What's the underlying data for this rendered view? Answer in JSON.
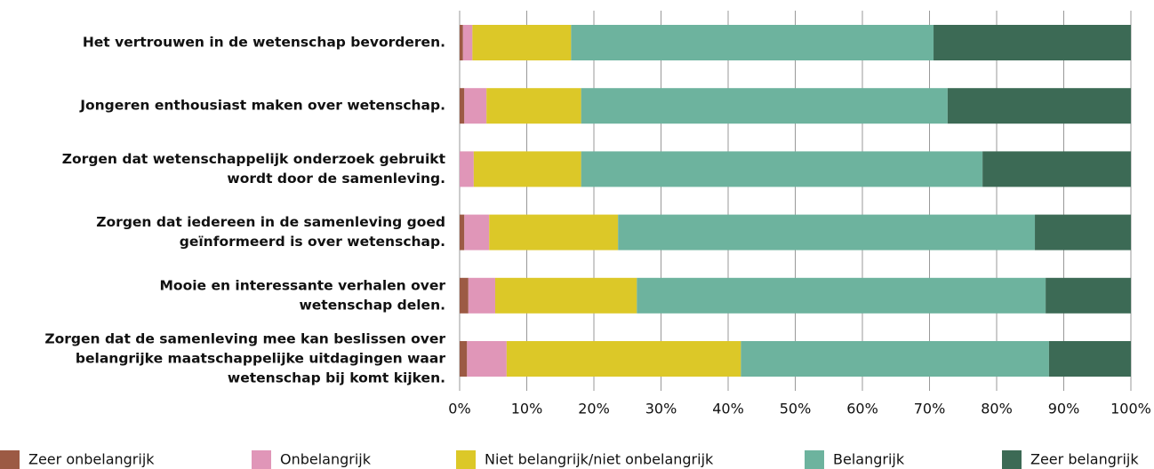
{
  "chart_data": {
    "type": "stacked-bar",
    "categories": [
      [
        "Het vertrouwen in de wetenschap bevorderen."
      ],
      [
        "Jongeren enthousiast maken over wetenschap."
      ],
      [
        "Zorgen dat wetenschappelijk onderzoek gebruikt",
        "wordt door de samenleving."
      ],
      [
        "Zorgen dat iedereen in de samenleving goed",
        "geïnformeerd is over wetenschap."
      ],
      [
        "Mooie en interessante verhalen over",
        "wetenschap delen."
      ],
      [
        "Zorgen dat de samenleving mee kan beslissen over",
        "belangrijke maatschappelijke uitdagingen waar",
        "wetenschap bij komt kijken."
      ]
    ],
    "series": [
      {
        "name": "Zeer onbelangrijk",
        "color": "#9c5a44",
        "values": [
          0.5,
          0.7,
          0,
          0.7,
          1.3,
          1.1
        ]
      },
      {
        "name": "Onbelangrijk",
        "color": "#e096b8",
        "values": [
          1.4,
          3.3,
          2.1,
          3.7,
          4.0,
          5.9
        ]
      },
      {
        "name": "Niet belangrijk/niet onbelangrijk",
        "color": "#dcc828",
        "values": [
          14.7,
          14.1,
          16.0,
          19.2,
          21.1,
          34.9
        ]
      },
      {
        "name": "Belangrijk",
        "color": "#6db39e",
        "values": [
          54.0,
          54.6,
          59.8,
          62.1,
          60.9,
          45.9
        ]
      },
      {
        "name": "Zeer belangrijk",
        "color": "#3c6a55",
        "values": [
          29.4,
          27.3,
          22.1,
          14.3,
          12.7,
          12.2
        ]
      }
    ],
    "xlim": [
      0,
      100
    ],
    "xticks": [
      {
        "value": 0,
        "label": "0%"
      },
      {
        "value": 10,
        "label": "10%"
      },
      {
        "value": 20,
        "label": "20%"
      },
      {
        "value": 30,
        "label": "30%"
      },
      {
        "value": 40,
        "label": "40%"
      },
      {
        "value": 50,
        "label": "50%"
      },
      {
        "value": 60,
        "label": "60%"
      },
      {
        "value": 70,
        "label": "70%"
      },
      {
        "value": 80,
        "label": "80%"
      },
      {
        "value": 90,
        "label": "90%"
      },
      {
        "value": 100,
        "label": "100%"
      }
    ],
    "grid": true,
    "legend": "bottom"
  }
}
